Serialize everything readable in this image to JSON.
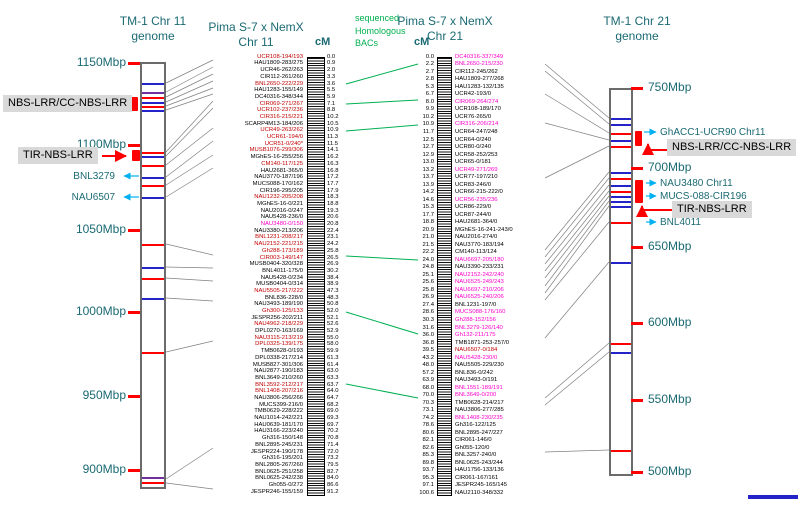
{
  "colors": {
    "teal_text": "#1b6a73",
    "marker_red": "#C00000",
    "marker_magenta": "#FF00CC",
    "bac_green": "#00B050",
    "arrow_cyan": "#00B0F0",
    "arrow_red": "#FF0000",
    "band_blue": "#2323c8",
    "band_red": "#FF0000",
    "band_purple": "#7030A0",
    "label_bg": "#D9D9D9",
    "connector_gray": "#808080"
  },
  "left_genome": {
    "title1": "TM-1 Chr 11",
    "title2": "genome",
    "ticks": [
      [
        "1150Mbp",
        63
      ],
      [
        "1100Mbp",
        145
      ],
      [
        "1050Mbp",
        230
      ],
      [
        "1000Mbp",
        312
      ],
      [
        "950Mbp",
        396
      ],
      [
        "900Mbp",
        470
      ]
    ],
    "bands": [
      [
        83,
        "b"
      ],
      [
        92,
        "p"
      ],
      [
        97,
        "r"
      ],
      [
        102,
        "b"
      ],
      [
        106,
        "r"
      ],
      [
        110,
        "b"
      ],
      [
        152,
        "r"
      ],
      [
        156,
        "b"
      ],
      [
        165,
        "r"
      ],
      [
        177,
        "b"
      ],
      [
        185,
        "r"
      ],
      [
        197,
        "b"
      ],
      [
        244,
        "r"
      ],
      [
        267,
        "b"
      ],
      [
        278,
        "r"
      ],
      [
        298,
        "b"
      ],
      [
        352,
        "r"
      ],
      [
        477,
        "p"
      ],
      [
        482,
        "r"
      ]
    ]
  },
  "right_genome": {
    "title1": "TM-1 Chr 21",
    "title2": "genome",
    "ticks": [
      [
        "750Mbp",
        88
      ],
      [
        "700Mbp",
        168
      ],
      [
        "650Mbp",
        247
      ],
      [
        "600Mbp",
        323
      ],
      [
        "550Mbp",
        400
      ],
      [
        "500Mbp",
        472
      ]
    ],
    "bands": [
      [
        118,
        "b"
      ],
      [
        124,
        "b"
      ],
      [
        133,
        "r"
      ],
      [
        140,
        "b"
      ],
      [
        146,
        "r"
      ],
      [
        172,
        "b"
      ],
      [
        178,
        "r"
      ],
      [
        185,
        "b"
      ],
      [
        191,
        "r"
      ],
      [
        196,
        "b"
      ],
      [
        201,
        "b"
      ],
      [
        206,
        "b"
      ],
      [
        222,
        "r"
      ],
      [
        262,
        "b"
      ],
      [
        343,
        "r"
      ],
      [
        352,
        "b"
      ],
      [
        450,
        "r"
      ]
    ]
  },
  "bac_label": {
    "l1": "sequenced",
    "l2": "Homologous",
    "l3": "BACs"
  },
  "left_group": {
    "title1": "Pima S-7 x NemX",
    "title2": "Chr 11",
    "cm_header": "cM",
    "rows": [
      [
        "0.0",
        "UCR108-194/193",
        "r"
      ],
      [
        "0.9",
        "HAU1809-283/275",
        "k"
      ],
      [
        "2.0",
        "UCR46-262/263",
        "k"
      ],
      [
        "3.3",
        "CIR112-261/260",
        "k"
      ],
      [
        "3.6",
        "BNL2650-222/229",
        "r"
      ],
      [
        "5.5",
        "HAU1283-155/149",
        "k"
      ],
      [
        "5.9",
        "DC40316-348/344",
        "k"
      ],
      [
        "7.1",
        "CIR069-271/267",
        "r"
      ],
      [
        "8.8",
        "UCR102-237/236",
        "r"
      ],
      [
        "10.2",
        "CIR316-215/221",
        "r"
      ],
      [
        "10.5",
        "SCARP4M13-184/206",
        "k"
      ],
      [
        "10.9",
        "UCR49-263/262",
        "r"
      ],
      [
        "11.3",
        "UCR61-194/0",
        "r"
      ],
      [
        "11.5",
        "UCR51-0/240*",
        "r"
      ],
      [
        "14.1",
        "MUSB1076-299/306",
        "r"
      ],
      [
        "16.2",
        "MGhES-16-255/256",
        "k"
      ],
      [
        "16.3",
        "CM140-117/125",
        "r"
      ],
      [
        "16.8",
        "HAU2681-365/0",
        "k"
      ],
      [
        "17.2",
        "NAU3770-187/196",
        "k"
      ],
      [
        "17.7",
        "MUCS088-170/162",
        "k"
      ],
      [
        "17.9",
        "CIR196-295/205",
        "k"
      ],
      [
        "18.3",
        "NAU1232-205/208",
        "r"
      ],
      [
        "18.8",
        "MGhES-16-0/221",
        "k"
      ],
      [
        "19.3",
        "NAU2016-0/247",
        "k"
      ],
      [
        "20.6",
        "NAU5428-236/0",
        "k"
      ],
      [
        "20.8",
        "NAU3480-0/150",
        "m"
      ],
      [
        "22.4",
        "NAU3380-213/206",
        "k"
      ],
      [
        "23.1",
        "BNL1231-208/217",
        "r"
      ],
      [
        "24.2",
        "NAU2152-221/215",
        "r"
      ],
      [
        "25.8",
        "Gh288-173/189",
        "r"
      ],
      [
        "26.5",
        "CIR003-149/147",
        "r"
      ],
      [
        "26.9",
        "MUSB0404-320/328",
        "k"
      ],
      [
        "30.2",
        "BNL4011-175/0",
        "k"
      ],
      [
        "38.4",
        "NAU5428-0/234",
        "k"
      ],
      [
        "38.9",
        "MUSB0404-0/314",
        "k"
      ],
      [
        "47.3",
        "NAU5505-217/222",
        "r"
      ],
      [
        "48.3",
        "BNL836-228/0",
        "k"
      ],
      [
        "50.8",
        "NAU3493-189/190",
        "k"
      ],
      [
        "52.0",
        "Gh300-125/133",
        "r"
      ],
      [
        "52.1",
        "JESPR256-202/211",
        "k"
      ],
      [
        "52.6",
        "NAU4962-218/229",
        "r"
      ],
      [
        "52.9",
        "DPL0270-163/169",
        "k"
      ],
      [
        "55.0",
        "NAU3115-213/219",
        "r"
      ],
      [
        "58.0",
        "DPL0325-139/175",
        "r"
      ],
      [
        "59.9",
        "TMB0628-0/193",
        "k"
      ],
      [
        "61.3",
        "DPL0338-217/214",
        "k"
      ],
      [
        "61.4",
        "MUSB827-301/306",
        "k"
      ],
      [
        "63.0",
        "NAU2877-190/183",
        "k"
      ],
      [
        "63.3",
        "BNL3649-210/260",
        "k"
      ],
      [
        "63.7",
        "BNL3592-212/217",
        "r"
      ],
      [
        "64.0",
        "BNL1408-207/216",
        "r"
      ],
      [
        "64.7",
        "NAU3806-256/266",
        "k"
      ],
      [
        "68.2",
        "MUCS399-216/0",
        "k"
      ],
      [
        "69.0",
        "TMB0629-228/222",
        "k"
      ],
      [
        "69.3",
        "NAU1014-242/221",
        "k"
      ],
      [
        "69.7",
        "HAU0639-181/170",
        "k"
      ],
      [
        "70.2",
        "HAU3166-223/240",
        "k"
      ],
      [
        "70.8",
        "Gh316-150/148",
        "k"
      ],
      [
        "71.4",
        "BNL2895-245/231",
        "k"
      ],
      [
        "72.0",
        "JESPR224-190/178",
        "k"
      ],
      [
        "73.2",
        "Gh316-195/201",
        "k"
      ],
      [
        "79.5",
        "BNL2805-267/260",
        "k"
      ],
      [
        "82.7",
        "BNL0625-251/258",
        "k"
      ],
      [
        "84.0",
        "BNL0625-242/238",
        "k"
      ],
      [
        "86.6",
        "Gh055-0/272",
        "k"
      ],
      [
        "91.2",
        "JESPR246-155/159",
        "k"
      ]
    ]
  },
  "right_group": {
    "title1": "Pima S-7 x NemX",
    "title2": "Chr 21",
    "cm_header": "cM",
    "rows": [
      [
        "0.0",
        "DC40316-337/349",
        "m"
      ],
      [
        "2.2",
        "BNL2650-215/230",
        "m"
      ],
      [
        "2.7",
        "CIR112-245/262",
        "k"
      ],
      [
        "2.8",
        "HAU1809-277/268",
        "k"
      ],
      [
        "5.3",
        "HAU1283-132/135",
        "k"
      ],
      [
        "6.7",
        "UCR42-193/0",
        "k"
      ],
      [
        "8.0",
        "CIR069-264/274",
        "m"
      ],
      [
        "9.9",
        "UCR108-189/170",
        "k"
      ],
      [
        "10.2",
        "UCR76-265/0",
        "k"
      ],
      [
        "10.9",
        "CIR316-206/214",
        "m"
      ],
      [
        "11.7",
        "UCR64-247/248",
        "k"
      ],
      [
        "12.5",
        "UCR64-0/240",
        "k"
      ],
      [
        "12.7",
        "UCR80-0/240",
        "k"
      ],
      [
        "12.9",
        "UCR58-252/253",
        "k"
      ],
      [
        "13.0",
        "UCR65-0/181",
        "k"
      ],
      [
        "13.2",
        "UCR49-271/269",
        "m"
      ],
      [
        "13.7",
        "UCR77-197/210",
        "k"
      ],
      [
        "13.9",
        "UCR83-246/0",
        "k"
      ],
      [
        "14.2",
        "UCR66-215-222/0",
        "k"
      ],
      [
        "14.6",
        "UCR56-235/236",
        "m"
      ],
      [
        "15.3",
        "UCR86-229/0",
        "k"
      ],
      [
        "17.7",
        "UCR87-244/0",
        "k"
      ],
      [
        "18.8",
        "HAU2681-364/0",
        "k"
      ],
      [
        "20.9",
        "MGhES-16-241-243/0",
        "k"
      ],
      [
        "21.0",
        "NAU2016-274/0",
        "k"
      ],
      [
        "21.5",
        "NAU3770-183/194",
        "k"
      ],
      [
        "22.2",
        "CM140-113/124",
        "k"
      ],
      [
        "24.0",
        "NAU6697-205/180",
        "m"
      ],
      [
        "24.8",
        "NAU3390-233/231",
        "k"
      ],
      [
        "25.1",
        "NAU2152-242/240",
        "m"
      ],
      [
        "25.6",
        "NAU6525-249/243",
        "m"
      ],
      [
        "25.8",
        "NAU6697-210/206",
        "m"
      ],
      [
        "26.9",
        "NAU6525-240/206",
        "m"
      ],
      [
        "27.4",
        "BNL1231-197/0",
        "k"
      ],
      [
        "28.6",
        "MUCS088-176/160",
        "m"
      ],
      [
        "30.3",
        "Gh288-152/156",
        "m"
      ],
      [
        "31.6",
        "BNL3279-126/140",
        "m"
      ],
      [
        "36.0",
        "Gh132-211/175",
        "m"
      ],
      [
        "36.8",
        "TMB1871-253-257/0",
        "k"
      ],
      [
        "39.5",
        "NAU6507-0/184",
        "r"
      ],
      [
        "43.2",
        "NAU5428-230/0",
        "m"
      ],
      [
        "48.0",
        "NAU5505-229/230",
        "k"
      ],
      [
        "57.2",
        "BNL836-0/242",
        "k"
      ],
      [
        "63.9",
        "NAU3493-0/191",
        "k"
      ],
      [
        "68.0",
        "BNL1551-189/191",
        "m"
      ],
      [
        "70.0",
        "BNL3649-0/200",
        "m"
      ],
      [
        "70.3",
        "TMB0628-214/217",
        "k"
      ],
      [
        "73.1",
        "NAU3806-277/285",
        "k"
      ],
      [
        "74.2",
        "BNL1408-230/235",
        "m"
      ],
      [
        "78.6",
        "Gh316-122/125",
        "k"
      ],
      [
        "80.6",
        "BNL2895-247/227",
        "k"
      ],
      [
        "82.1",
        "CIR061-146/0",
        "k"
      ],
      [
        "82.6",
        "Gh055-120/0",
        "k"
      ],
      [
        "85.3",
        "BNL3257-240/0",
        "k"
      ],
      [
        "89.8",
        "BNL0625-243/244",
        "k"
      ],
      [
        "93.7",
        "HAU1756-133/136",
        "k"
      ],
      [
        "95.3",
        "CIR061-167/161",
        "k"
      ],
      [
        "97.1",
        "JESPR245-165/145",
        "k"
      ],
      [
        "100.6",
        "NAU2110-348/332",
        "k"
      ]
    ]
  },
  "annotations_left": {
    "nbs": "NBS-LRR/CC-NBS-LRR",
    "tir": "TIR-NBS-LRR",
    "bnl3279": "BNL3279",
    "nau6507": "NAU6507"
  },
  "annotations_right": {
    "ghacc": "GhACC1-UCR90 Chr11",
    "nbs": "NBS-LRR/CC-NBS-LRR",
    "nau3480": "NAU3480 Chr11",
    "mucs": "MUCS-088-CIR196",
    "tir": "TIR-NBS-LRR",
    "bnl4011": "BNL4011"
  }
}
